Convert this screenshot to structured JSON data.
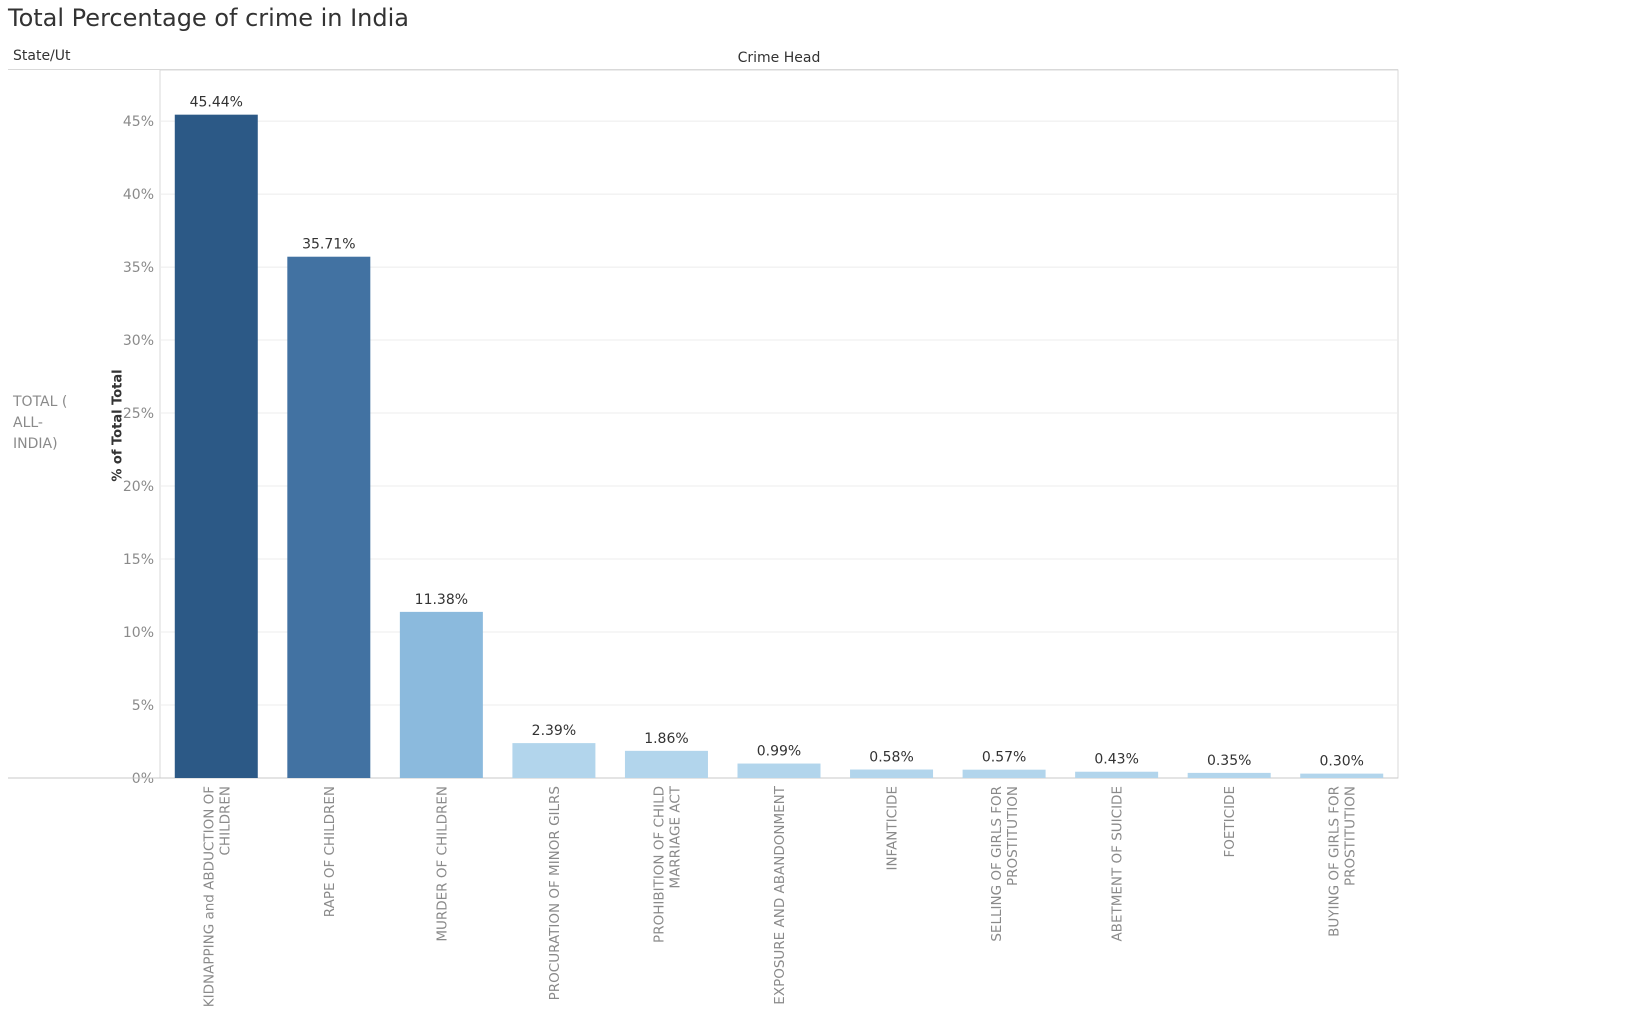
{
  "title": "Total Percentage of crime in India",
  "headers": {
    "row": "State/Ut",
    "column": "Crime Head"
  },
  "row_label_lines": [
    "TOTAL (",
    "ALL-",
    "INDIA)"
  ],
  "colors": {
    "dark": "#2c5986",
    "medium": "#4272a2",
    "light": "#8bbadd",
    "pale": "#b2d5ec",
    "grid": "#ececec",
    "axis_text": "#8a8a8a",
    "label_text": "#333333"
  },
  "chart_data": {
    "type": "bar",
    "ylabel": "% of Total Total",
    "xlabel": "",
    "ylim": [
      0,
      48.5
    ],
    "yticks": [
      0,
      5,
      10,
      15,
      20,
      25,
      30,
      35,
      40,
      45
    ],
    "ytick_labels": [
      "0%",
      "5%",
      "10%",
      "15%",
      "20%",
      "25%",
      "30%",
      "35%",
      "40%",
      "45%"
    ],
    "grid": true,
    "categories": [
      "KIDNAPPING and ABDUCTION OF CHILDREN",
      "RAPE OF CHILDREN",
      "MURDER OF CHILDREN",
      "PROCURATION OF MINOR GILRS",
      "PROHIBITION OF CHILD MARRIAGE ACT",
      "EXPOSURE AND ABANDONMENT",
      "INFANTICIDE",
      "SELLING OF GIRLS FOR PROSTITUTION",
      "ABETMENT OF SUICIDE",
      "FOETICIDE",
      "BUYING OF GIRLS FOR PROSTITUTION"
    ],
    "category_label_lines": [
      [
        "KIDNAPPING and ABDUCTION OF",
        "CHILDREN"
      ],
      [
        "RAPE OF CHILDREN"
      ],
      [
        "MURDER OF CHILDREN"
      ],
      [
        "PROCURATION OF MINOR GILRS"
      ],
      [
        "PROHIBITION OF CHILD",
        "MARRIAGE ACT"
      ],
      [
        "EXPOSURE AND ABANDONMENT"
      ],
      [
        "INFANTICIDE"
      ],
      [
        "SELLING OF GIRLS FOR",
        "PROSTITUTION"
      ],
      [
        "ABETMENT OF SUICIDE"
      ],
      [
        "FOETICIDE"
      ],
      [
        "BUYING OF GIRLS FOR",
        "PROSTITUTION"
      ]
    ],
    "values": [
      45.44,
      35.71,
      11.38,
      2.39,
      1.86,
      0.99,
      0.58,
      0.57,
      0.43,
      0.35,
      0.3
    ],
    "data_labels": [
      "45.44%",
      "35.71%",
      "11.38%",
      "2.39%",
      "1.86%",
      "0.99%",
      "0.58%",
      "0.57%",
      "0.43%",
      "0.35%",
      "0.30%"
    ],
    "bar_color_keys": [
      "dark",
      "medium",
      "light",
      "pale",
      "pale",
      "pale",
      "pale",
      "pale",
      "pale",
      "pale",
      "pale"
    ]
  }
}
